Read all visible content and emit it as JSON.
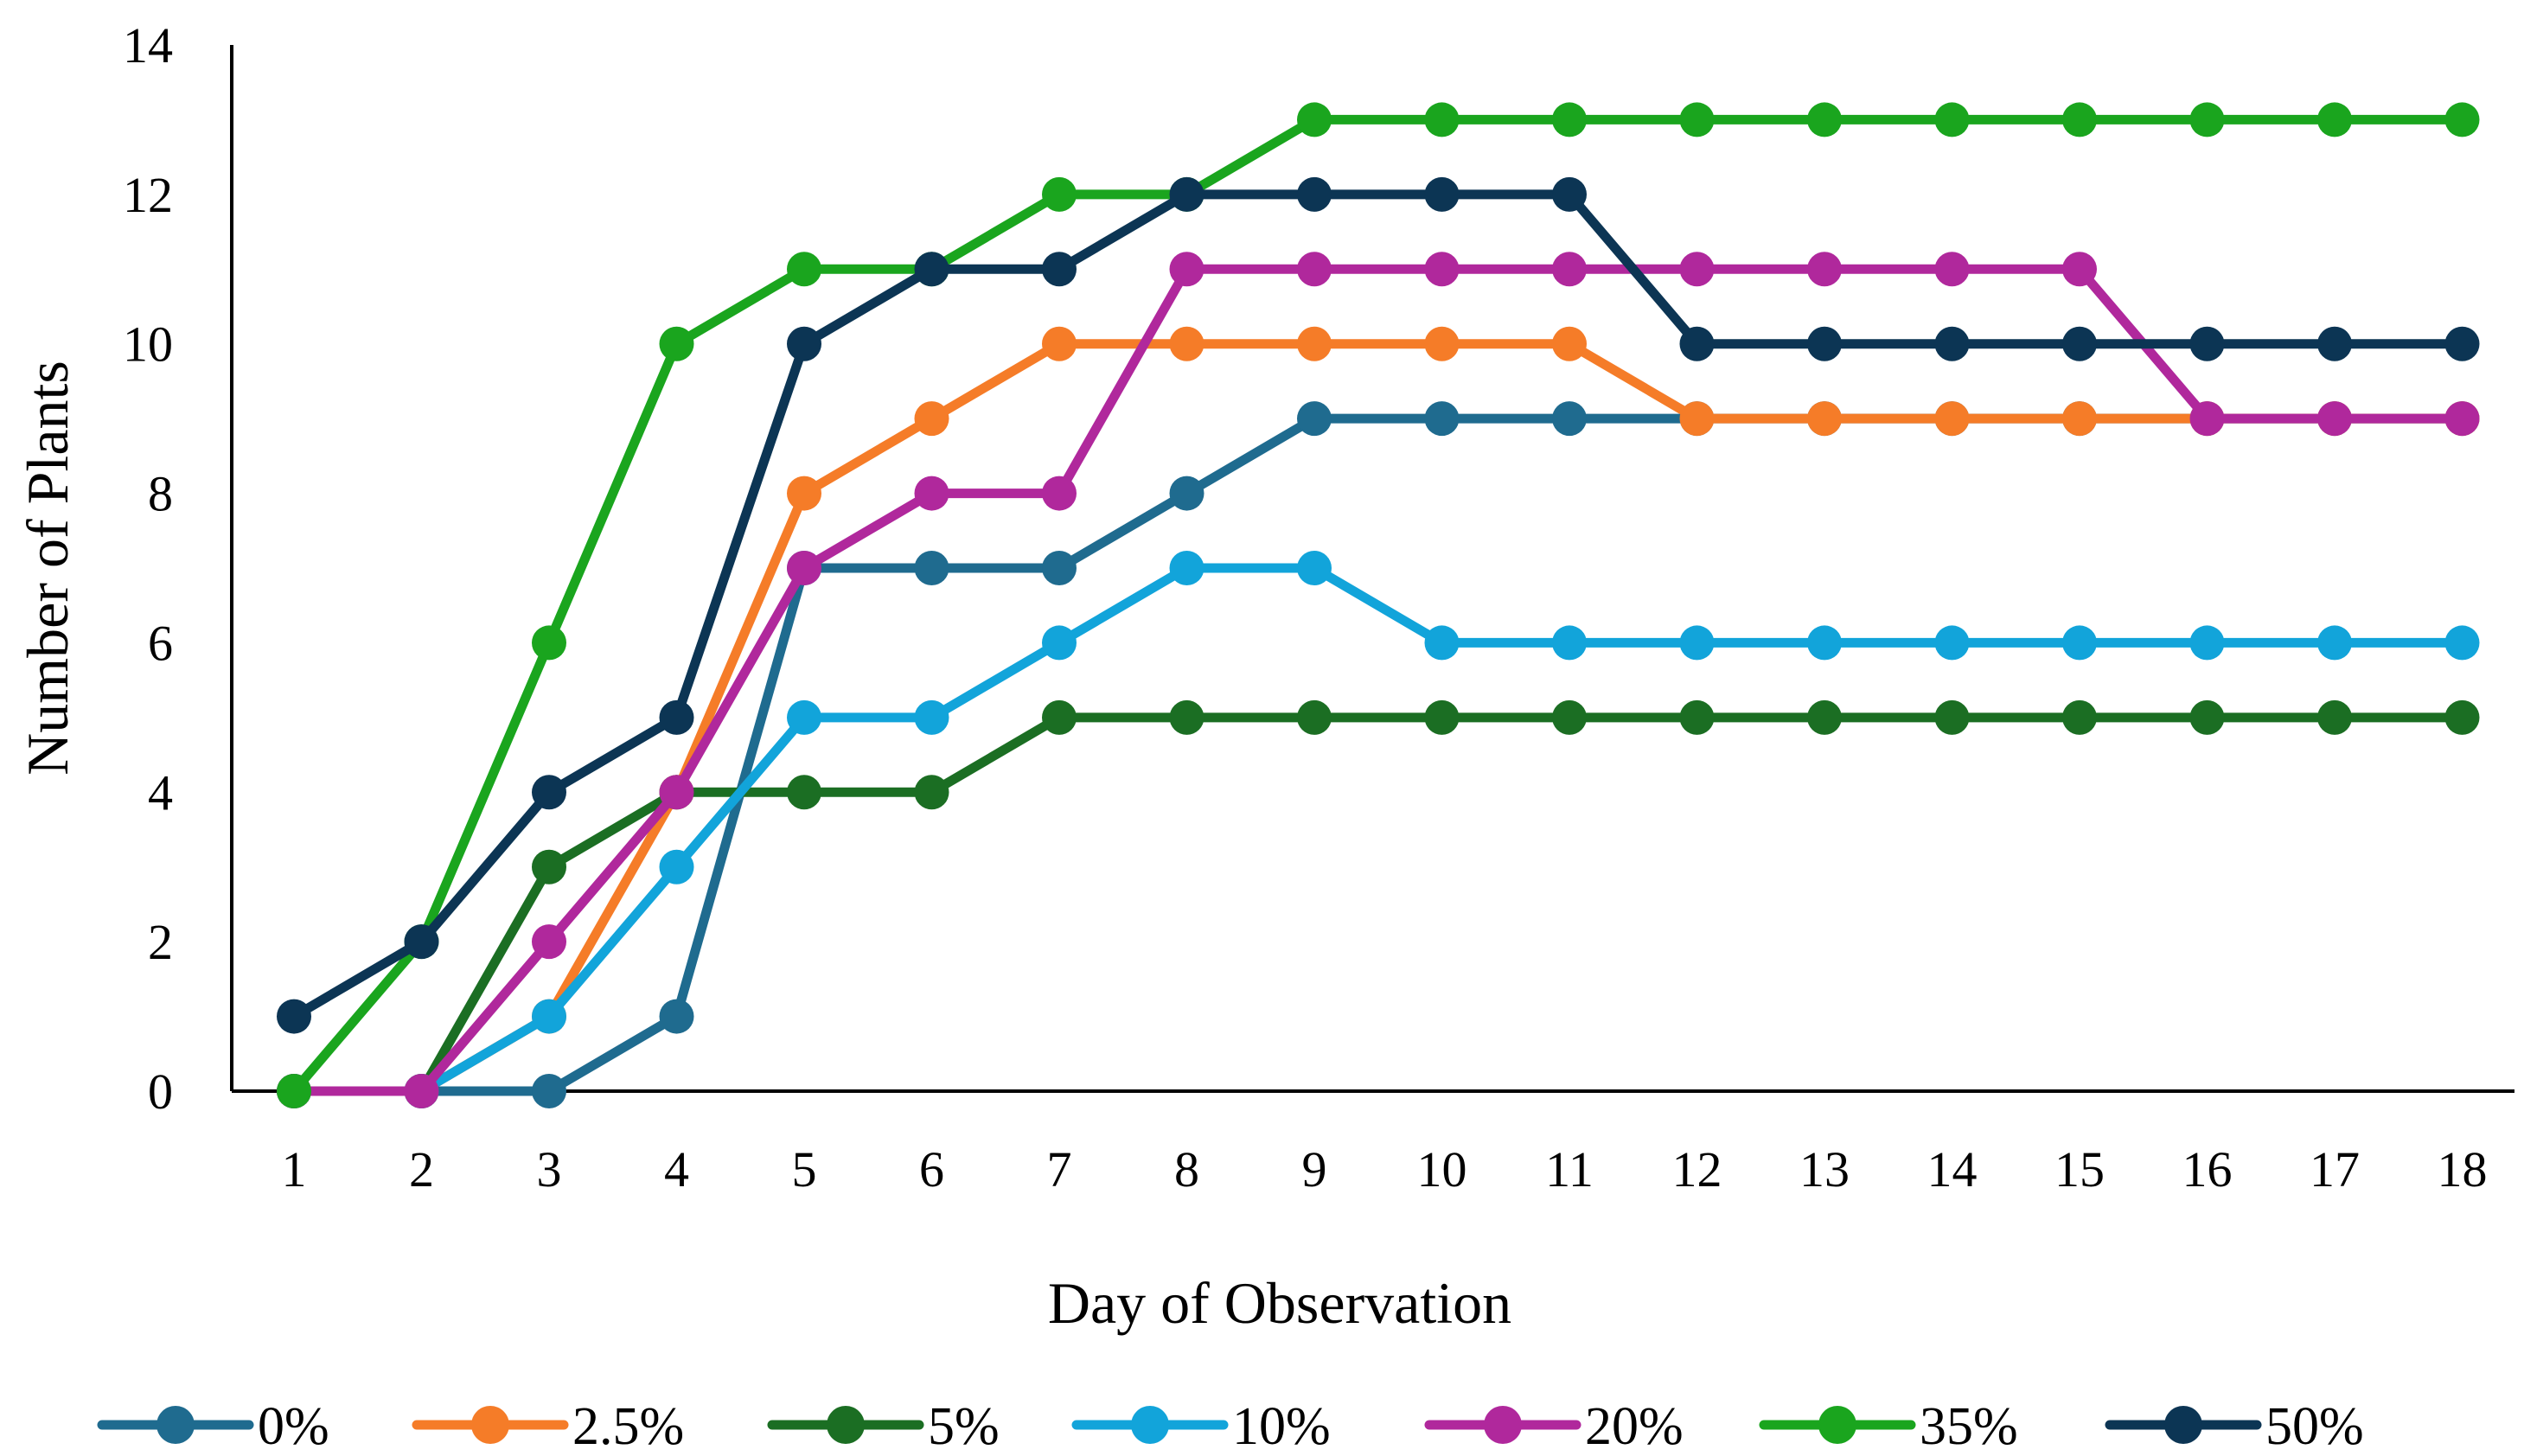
{
  "chart_data": {
    "type": "line",
    "title": "",
    "xlabel": "Day of Observation",
    "ylabel": "Number of Plants",
    "x": [
      1,
      2,
      3,
      4,
      5,
      6,
      7,
      8,
      9,
      10,
      11,
      12,
      13,
      14,
      15,
      16,
      17,
      18
    ],
    "x_tick_labels": [
      "1",
      "2",
      "3",
      "4",
      "5",
      "6",
      "7",
      "8",
      "9",
      "10",
      "11",
      "12",
      "13",
      "14",
      "15",
      "16",
      "17",
      "18"
    ],
    "ylim": [
      0,
      14
    ],
    "y_ticks": [
      0,
      2,
      4,
      6,
      8,
      10,
      12,
      14
    ],
    "y_tick_labels": [
      "0",
      "2",
      "4",
      "6",
      "8",
      "10",
      "12",
      "14"
    ],
    "grid": false,
    "legend_position": "bottom",
    "series": [
      {
        "name": "0%",
        "color": "#1f6b8f",
        "values": [
          0,
          0,
          0,
          1,
          7,
          7,
          7,
          8,
          9,
          9,
          9,
          9,
          9,
          9,
          9,
          9,
          9,
          9
        ]
      },
      {
        "name": "2.5%",
        "color": "#f57c28",
        "values": [
          0,
          0,
          1,
          4,
          8,
          9,
          10,
          10,
          10,
          10,
          10,
          9,
          9,
          9,
          9,
          9,
          9,
          9
        ]
      },
      {
        "name": "5%",
        "color": "#1b6e23",
        "values": [
          0,
          0,
          3,
          4,
          4,
          4,
          5,
          5,
          5,
          5,
          5,
          5,
          5,
          5,
          5,
          5,
          5,
          5
        ]
      },
      {
        "name": "10%",
        "color": "#12a4da",
        "values": [
          0,
          0,
          1,
          3,
          5,
          5,
          6,
          7,
          7,
          6,
          6,
          6,
          6,
          6,
          6,
          6,
          6,
          6
        ]
      },
      {
        "name": "20%",
        "color": "#b0289c",
        "values": [
          0,
          0,
          2,
          4,
          7,
          8,
          8,
          11,
          11,
          11,
          11,
          11,
          11,
          11,
          11,
          9,
          9,
          9
        ]
      },
      {
        "name": "35%",
        "color": "#1aa51e",
        "values": [
          0,
          2,
          6,
          10,
          11,
          11,
          12,
          12,
          13,
          13,
          13,
          13,
          13,
          13,
          13,
          13,
          13,
          13
        ]
      },
      {
        "name": "50%",
        "color": "#0c3554",
        "values": [
          1,
          2,
          4,
          5,
          10,
          11,
          11,
          12,
          12,
          12,
          12,
          10,
          10,
          10,
          10,
          10,
          10,
          10
        ]
      }
    ]
  }
}
